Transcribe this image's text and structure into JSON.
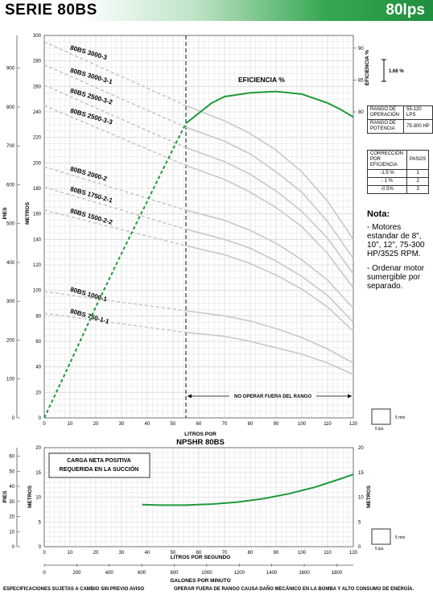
{
  "header": {
    "title": "SERIE 80BS",
    "rating": "80lps"
  },
  "main_chart": {
    "y_left_outer_label": "PIES",
    "y_left_outer_ticks": [
      0,
      100,
      200,
      300,
      400,
      500,
      600,
      700,
      800,
      900
    ],
    "y_left_inner_label": "METROS",
    "y_left_inner_ticks": [
      0,
      20,
      40,
      60,
      80,
      100,
      120,
      140,
      160,
      180,
      200,
      220,
      240,
      260,
      280,
      300
    ],
    "x_label": "LITROS POR",
    "x_ticks": [
      0,
      10,
      20,
      30,
      40,
      50,
      60,
      70,
      80,
      90,
      100,
      110,
      120
    ],
    "y_right_label": "EFICIENCIA %",
    "y_right_ticks": [
      80,
      85,
      90
    ],
    "efficiency_title": "EFICIENCIA %",
    "range_note": "NO OPERAR FUERA DEL RANGO",
    "scale_pct": "1.66 %",
    "scale_box_label_w": "5 lps",
    "scale_box_label_h": "5 mts"
  },
  "info_table": {
    "rows": [
      [
        "RANGO DE OPERACIÓN",
        "55-120 LPS"
      ],
      [
        "RANGO DE POTENCIA",
        "75-300 HP"
      ]
    ]
  },
  "correction_table": {
    "header": [
      "CORRECCIÓN POR EFICIENCIA",
      "PASOS"
    ],
    "rows": [
      [
        "-1.5 %",
        "1"
      ],
      [
        "- 1 %",
        "2"
      ],
      [
        "-0.5%",
        "3"
      ]
    ]
  },
  "nota": {
    "title": "Nota:",
    "items": [
      "- Motores estandar de 8\", 10\", 12\", 75-300 HP/3525 RPM.",
      "- Ordenar motor sumergible por separado."
    ]
  },
  "npshr_chart": {
    "title": "NPSHR 80BS",
    "legend_text": [
      "CARGA NETA POSITIVA",
      "REQUERIDA EN LA SUCCIÓN"
    ],
    "y_left_outer_label": "PIES",
    "y_left_outer_ticks": [
      0,
      10,
      20,
      30,
      40,
      50,
      60
    ],
    "y_left_inner_label": "METROS",
    "y_left_inner_ticks": [
      0,
      5,
      10,
      15,
      20
    ],
    "y_right_label": "METROS",
    "y_right_ticks": [
      0,
      5,
      10,
      15,
      20
    ],
    "x_label": "LITROS POR SEGUNDO",
    "x_ticks": [
      0,
      10,
      20,
      30,
      40,
      50,
      60,
      70,
      80,
      90,
      100,
      110,
      120
    ],
    "x2_label": "GALONES POR MINUTO",
    "x2_ticks": [
      0,
      200,
      400,
      600,
      800,
      1000,
      1200,
      1400,
      1600,
      1800
    ],
    "scale_box_label_w": "5 lps",
    "scale_box_label_h": "5 mts"
  },
  "footer": {
    "left": "ESPECIFICACIONES SUJETAS A CAMBIO SIN PREVIO AVISO",
    "right": "OPERAR FUERA DE RANGO CAUSA DAÑO MECÁNICO EN LA BOMBA Y ALTO CONSUMO DE ENERGÍA."
  },
  "colors": {
    "efficiency": "#1e9a3c",
    "pump_curve": "#c8c8c8",
    "grid": "#d9d9d9",
    "dash_line": "#333333"
  },
  "chart_data": [
    {
      "type": "line",
      "title": "SERIE 80BS",
      "xlabel": "LITROS POR",
      "ylabel": "METROS",
      "xlim": [
        0,
        120
      ],
      "ylim": [
        0,
        300
      ],
      "operating_limit_x": 55,
      "series": [
        {
          "name": "80BS 3000-3",
          "x": [
            0,
            55,
            70,
            80,
            90,
            100,
            110,
            120
          ],
          "y": [
            295,
            245,
            233,
            223,
            210,
            193,
            170,
            140
          ]
        },
        {
          "name": "80BS 3000-3-1",
          "x": [
            0,
            55,
            70,
            80,
            90,
            100,
            110,
            120
          ],
          "y": [
            277,
            228,
            217,
            207,
            193,
            177,
            154,
            125
          ]
        },
        {
          "name": "80BS 2500-3-2",
          "x": [
            0,
            55,
            70,
            80,
            90,
            100,
            110,
            120
          ],
          "y": [
            261,
            212,
            201,
            191,
            178,
            162,
            141,
            113
          ]
        },
        {
          "name": "80BS 2500-3-3",
          "x": [
            0,
            55,
            70,
            80,
            90,
            100,
            110,
            120
          ],
          "y": [
            245,
            198,
            187,
            177,
            165,
            150,
            129,
            102
          ]
        },
        {
          "name": "80BS 2000-2",
          "x": [
            0,
            55,
            70,
            80,
            90,
            100,
            110,
            120
          ],
          "y": [
            197,
            163,
            155,
            147,
            137,
            124,
            108,
            86
          ]
        },
        {
          "name": "80BS 1750-2-1",
          "x": [
            0,
            55,
            70,
            80,
            90,
            100,
            110,
            120
          ],
          "y": [
            181,
            148,
            140,
            133,
            123,
            111,
            96,
            75
          ]
        },
        {
          "name": "80BS 1500-2-2",
          "x": [
            0,
            55,
            70,
            80,
            90,
            100,
            110,
            120
          ],
          "y": [
            163,
            135,
            128,
            121,
            112,
            101,
            87,
            68
          ]
        },
        {
          "name": "80BS 1000-1",
          "x": [
            0,
            55,
            70,
            80,
            90,
            100,
            110,
            120
          ],
          "y": [
            99,
            84,
            80,
            76,
            70,
            63,
            54,
            43
          ]
        },
        {
          "name": "80BS 750-1-1",
          "x": [
            0,
            55,
            70,
            80,
            90,
            100,
            110,
            120
          ],
          "y": [
            82,
            67,
            64,
            60,
            55,
            50,
            43,
            34
          ]
        },
        {
          "name": "EFICIENCIA %",
          "x": [
            0,
            10,
            20,
            30,
            40,
            50,
            55,
            60,
            65,
            70,
            80,
            90,
            100,
            110,
            115,
            120
          ],
          "y": [
            0,
            43,
            87,
            129,
            170,
            211,
            231,
            239,
            247,
            252,
            255,
            256,
            254,
            247,
            242,
            236
          ]
        }
      ]
    },
    {
      "type": "line",
      "title": "NPSHR 80BS",
      "xlabel": "LITROS POR SEGUNDO",
      "ylabel": "METROS",
      "xlim": [
        0,
        120
      ],
      "ylim": [
        0,
        20
      ],
      "series": [
        {
          "name": "CARGA NETA POSITIVA REQUERIDA EN LA SUCCIÓN",
          "x": [
            38,
            45,
            55,
            65,
            75,
            85,
            95,
            105,
            115,
            120
          ],
          "y": [
            8.5,
            8.4,
            8.4,
            8.6,
            9.0,
            9.7,
            10.7,
            12.0,
            13.7,
            14.6
          ]
        }
      ]
    }
  ]
}
